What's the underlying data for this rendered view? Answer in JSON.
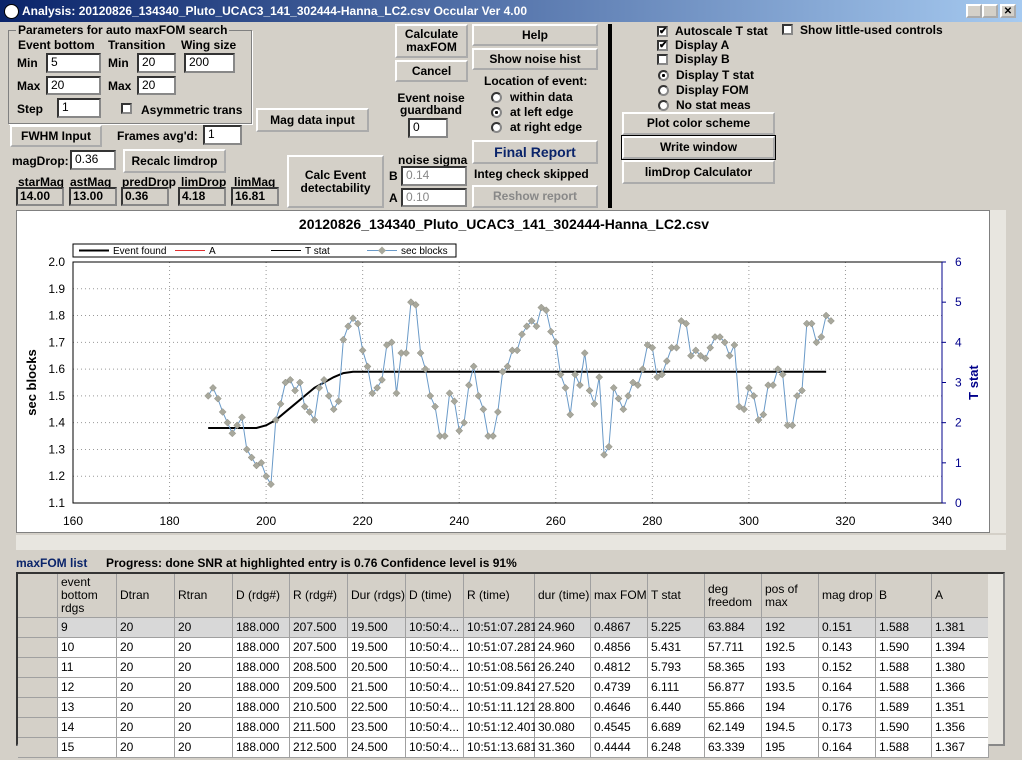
{
  "window": {
    "title": "Analysis: 20120826_134340_Pluto_UCAC3_141_302444-Hanna_LC2.csv  Occular Ver 4.00"
  },
  "params": {
    "title": "Parameters for auto maxFOM search",
    "event_bottom": "Event bottom",
    "transition": "Transition",
    "wing_size": "Wing size",
    "min": "Min",
    "max": "Max",
    "step": "Step",
    "eb_min": "5",
    "eb_max": "20",
    "step_value": "1",
    "tr_min": "20",
    "tr_max": "20",
    "wing": "200",
    "asym": "Asymmetric trans"
  },
  "left": {
    "fwhm": "FWHM Input",
    "frames_label": "Frames avg'd:",
    "frames": "1",
    "mag_input": "Mag data input",
    "magdrop_label": "magDrop:",
    "magdrop": "0.36",
    "recalc": "Recalc limdrop",
    "calc_event": "Calc Event detectability",
    "stats": [
      {
        "label": "starMag",
        "value": "14.00"
      },
      {
        "label": "astMag",
        "value": "13.00"
      },
      {
        "label": "predDrop",
        "value": "0.36"
      },
      {
        "label": "limDrop",
        "value": "4.18"
      },
      {
        "label": "limMag",
        "value": "16.81"
      }
    ]
  },
  "middle": {
    "calc_maxfom": "Calculate maxFOM",
    "cancel": "Cancel",
    "guardband_label": "Event noise guardband",
    "guardband": "0",
    "noise_sigma": "noise sigma",
    "b_label": "B",
    "b": "0.14",
    "a_label": "A",
    "a": "0.10",
    "help": "Help",
    "noise_hist": "Show noise hist",
    "location": "Location of event:",
    "loc_options": [
      "within data",
      "at left edge",
      "at right edge"
    ],
    "final_report": "Final Report",
    "integ": "Integ check skipped",
    "reshow": "Reshow report"
  },
  "right": {
    "checks": [
      "Autoscale T stat",
      "Display A",
      "Display B"
    ],
    "radios": [
      "Display T stat",
      "Display FOM",
      "No stat meas"
    ],
    "little_used": "Show little-used controls",
    "plot_color": "Plot color scheme",
    "write_window": "Write window",
    "limdrop_calc": "limDrop Calculator"
  },
  "status": {
    "list": "maxFOM list",
    "progress": "Progress: done  SNR at highlighted entry is 0.76   Confidence level is 91%"
  },
  "chart_data": {
    "type": "line",
    "title": "20120826_134340_Pluto_UCAC3_141_302444-Hanna_LC2.csv",
    "y_label": "sec blocks",
    "y2_label": "T stat",
    "grid": true,
    "xlim": [
      160,
      340
    ],
    "xticks": [
      160,
      180,
      200,
      220,
      240,
      260,
      280,
      300,
      320,
      340
    ],
    "ylim": [
      1.1,
      2.0
    ],
    "yticks": [
      1.1,
      1.2,
      1.3,
      1.4,
      1.5,
      1.6,
      1.7,
      1.8,
      1.9,
      {
        "value": 2,
        "label": "2.0"
      }
    ],
    "y2lim": [
      0,
      6
    ],
    "y2ticks": [
      0,
      1,
      2,
      3,
      4,
      5,
      6
    ],
    "series": [
      {
        "name": "Event found",
        "color": "#000000",
        "x": [
          188,
          198,
          200,
          202,
          204,
          206,
          208,
          210,
          212,
          214,
          216,
          218,
          220,
          316
        ],
        "values": [
          1.38,
          1.38,
          1.39,
          1.41,
          1.44,
          1.47,
          1.5,
          1.53,
          1.55,
          1.57,
          1.585,
          1.59,
          1.59,
          1.59
        ]
      },
      {
        "name": "A",
        "color": "#e03030"
      },
      {
        "name": "T stat",
        "color": "#000000"
      },
      {
        "name": "sec blocks",
        "color": "#6a9ac8",
        "marker_color": "#a8a89c",
        "x": [
          188,
          189,
          190,
          191,
          192,
          193,
          194,
          195,
          196,
          197,
          198,
          199,
          200,
          201,
          202,
          203,
          204,
          205,
          206,
          207,
          208,
          209,
          210,
          211,
          212,
          213,
          214,
          215,
          216,
          217,
          218,
          219,
          220,
          221,
          222,
          223,
          224,
          225,
          226,
          227,
          228,
          229,
          230,
          231,
          232,
          233,
          234,
          235,
          236,
          237,
          238,
          239,
          240,
          241,
          242,
          243,
          244,
          245,
          246,
          247,
          248,
          249,
          250,
          251,
          252,
          253,
          254,
          255,
          256,
          257,
          258,
          259,
          260,
          261,
          262,
          263,
          264,
          265,
          266,
          267,
          268,
          269,
          270,
          271,
          272,
          273,
          274,
          275,
          276,
          277,
          278,
          279,
          280,
          281,
          282,
          283,
          284,
          285,
          286,
          287,
          288,
          289,
          290,
          291,
          292,
          293,
          294,
          295,
          296,
          297,
          298,
          299,
          300,
          301,
          302,
          303,
          304,
          305,
          306,
          307,
          308,
          309,
          310,
          311,
          312,
          313,
          314,
          315,
          316,
          317
        ],
        "values": [
          1.5,
          1.53,
          1.49,
          1.44,
          1.4,
          1.36,
          1.39,
          1.42,
          1.3,
          1.27,
          1.24,
          1.25,
          1.2,
          1.17,
          1.41,
          1.47,
          1.55,
          1.56,
          1.52,
          1.55,
          1.46,
          1.44,
          1.41,
          1.53,
          1.56,
          1.5,
          1.45,
          1.48,
          1.71,
          1.76,
          1.79,
          1.77,
          1.67,
          1.61,
          1.51,
          1.53,
          1.56,
          1.69,
          1.7,
          1.51,
          1.66,
          1.66,
          1.85,
          1.84,
          1.66,
          1.6,
          1.5,
          1.46,
          1.35,
          1.35,
          1.51,
          1.48,
          1.37,
          1.4,
          1.54,
          1.61,
          1.5,
          1.45,
          1.35,
          1.35,
          1.44,
          1.59,
          1.61,
          1.67,
          1.67,
          1.73,
          1.76,
          1.78,
          1.76,
          1.83,
          1.82,
          1.74,
          1.7,
          1.58,
          1.53,
          1.43,
          1.58,
          1.54,
          1.66,
          1.52,
          1.47,
          1.57,
          1.28,
          1.31,
          1.53,
          1.49,
          1.45,
          1.5,
          1.55,
          1.54,
          1.6,
          1.69,
          1.68,
          1.57,
          1.58,
          1.63,
          1.68,
          1.68,
          1.78,
          1.77,
          1.65,
          1.67,
          1.65,
          1.64,
          1.68,
          1.72,
          1.72,
          1.7,
          1.65,
          1.69,
          1.46,
          1.45,
          1.53,
          1.5,
          1.41,
          1.43,
          1.54,
          1.54,
          1.6,
          1.58,
          1.39,
          1.39,
          1.5,
          1.52,
          1.77,
          1.77,
          1.7,
          1.72,
          1.8,
          1.78
        ]
      }
    ]
  },
  "table": {
    "headers": [
      "event bottom rdgs",
      "Dtran",
      "Rtran",
      "D (rdg#)",
      "R (rdg#)",
      "Dur (rdgs)",
      "D (time)",
      "R (time)",
      "dur (time)",
      "max FOM",
      "T stat",
      "deg freedom",
      "pos of max",
      "mag drop",
      "B",
      "A"
    ],
    "rows": [
      [
        "9",
        "20",
        "20",
        "188.000",
        "207.500",
        "19.500",
        "10:50:4...",
        "10:51:07.281",
        "24.960",
        "0.4867",
        "5.225",
        "63.884",
        "192",
        "0.151",
        "1.588",
        "1.381"
      ],
      [
        "10",
        "20",
        "20",
        "188.000",
        "207.500",
        "19.500",
        "10:50:4...",
        "10:51:07.281",
        "24.960",
        "0.4856",
        "5.431",
        "57.711",
        "192.5",
        "0.143",
        "1.590",
        "1.394"
      ],
      [
        "11",
        "20",
        "20",
        "188.000",
        "208.500",
        "20.500",
        "10:50:4...",
        "10:51:08.561",
        "26.240",
        "0.4812",
        "5.793",
        "58.365",
        "193",
        "0.152",
        "1.588",
        "1.380"
      ],
      [
        "12",
        "20",
        "20",
        "188.000",
        "209.500",
        "21.500",
        "10:50:4...",
        "10:51:09.841",
        "27.520",
        "0.4739",
        "6.111",
        "56.877",
        "193.5",
        "0.164",
        "1.588",
        "1.366"
      ],
      [
        "13",
        "20",
        "20",
        "188.000",
        "210.500",
        "22.500",
        "10:50:4...",
        "10:51:11.121",
        "28.800",
        "0.4646",
        "6.440",
        "55.866",
        "194",
        "0.176",
        "1.589",
        "1.351"
      ],
      [
        "14",
        "20",
        "20",
        "188.000",
        "211.500",
        "23.500",
        "10:50:4...",
        "10:51:12.401",
        "30.080",
        "0.4545",
        "6.689",
        "62.149",
        "194.5",
        "0.173",
        "1.590",
        "1.356"
      ],
      [
        "15",
        "20",
        "20",
        "188.000",
        "212.500",
        "24.500",
        "10:50:4...",
        "10:51:13.681",
        "31.360",
        "0.4444",
        "6.248",
        "63.339",
        "195",
        "0.164",
        "1.588",
        "1.367"
      ]
    ]
  }
}
